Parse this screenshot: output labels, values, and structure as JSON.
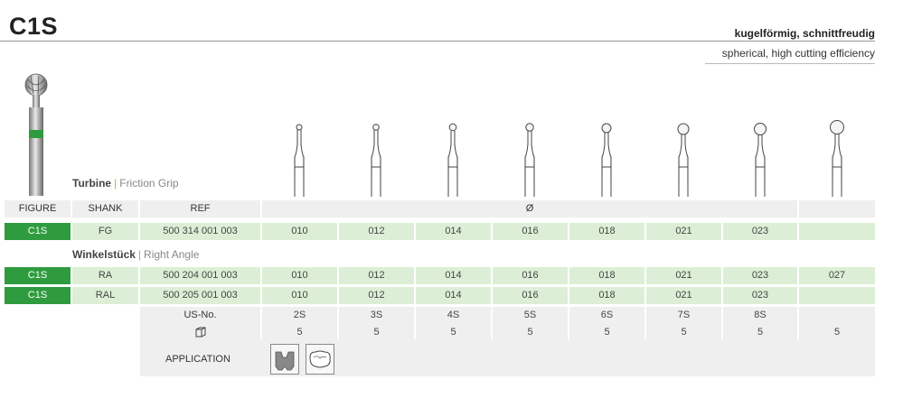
{
  "header": {
    "title": "C1S",
    "desc_de": "kugelförmig, schnittfreudig",
    "desc_en": "spherical, high cutting efficiency"
  },
  "sections": {
    "turbine": {
      "title": "Turbine",
      "subtitle": "Friction Grip"
    },
    "angle": {
      "title": "Winkelstück",
      "subtitle": "Right Angle"
    }
  },
  "table": {
    "headers": {
      "figure": "FIGURE",
      "shank": "SHANK",
      "ref": "REF",
      "diameter": "Ø"
    },
    "rows": [
      {
        "figure": "C1S",
        "shank": "FG",
        "ref": "500 314 001 003",
        "sizes": [
          "010",
          "012",
          "014",
          "016",
          "018",
          "021",
          "023",
          ""
        ]
      },
      {
        "figure": "C1S",
        "shank": "RA",
        "ref": "500 204 001 003",
        "sizes": [
          "010",
          "012",
          "014",
          "016",
          "018",
          "021",
          "023",
          "027"
        ]
      },
      {
        "figure": "C1S",
        "shank": "RAL",
        "ref": "500 205 001 003",
        "sizes": [
          "010",
          "012",
          "014",
          "016",
          "018",
          "021",
          "023",
          ""
        ]
      }
    ],
    "us_no_label": "US-No.",
    "us_no": [
      "2S",
      "3S",
      "4S",
      "5S",
      "6S",
      "7S",
      "8S",
      ""
    ],
    "pack_icon": "package-icon",
    "pack": [
      "5",
      "5",
      "5",
      "5",
      "5",
      "5",
      "5",
      "5"
    ],
    "application_label": "APPLICATION",
    "application_icons": [
      "tooth-cavity-icon",
      "tooth-occlusal-icon"
    ]
  },
  "colors": {
    "accent_green": "#2f9b3f",
    "light_green": "#dcefd6",
    "gray": "#efefef",
    "separator": "#8cc63f"
  }
}
